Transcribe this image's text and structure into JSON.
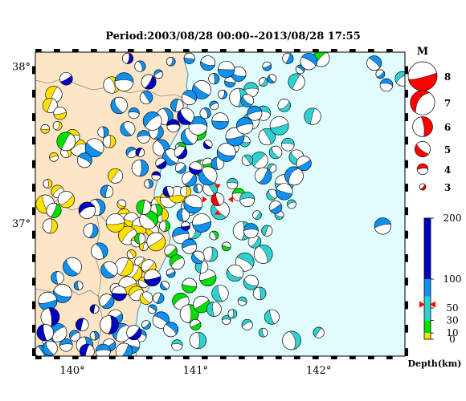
{
  "title": "Period:2003/08/28 00:00--2013/08/28 17:55",
  "map": {
    "lon_range": [
      139.7,
      142.7
    ],
    "lat_range": [
      36.15,
      38.09
    ],
    "lon_ticks": [
      {
        "value": 140,
        "label": "140°"
      },
      {
        "value": 141,
        "label": "141°"
      },
      {
        "value": 142,
        "label": "142°"
      }
    ],
    "lat_ticks": [
      {
        "value": 38,
        "label": "38°"
      },
      {
        "value": 37,
        "label": "37°"
      }
    ],
    "land_color": "#fde6c8",
    "sea_color": "#e0fcfc",
    "coast_color": "#6aa0c0",
    "prefecture_border_color": "#888888"
  },
  "mainshock": {
    "lon": 141.18,
    "lat": 37.15,
    "magnitude": 5,
    "depth_km": 56,
    "color": "#ff0000"
  },
  "magnitude_legend": {
    "title": "M",
    "items": [
      {
        "m": 8,
        "label": "8"
      },
      {
        "m": 7,
        "label": "7"
      },
      {
        "m": 6,
        "label": "6"
      },
      {
        "m": 5,
        "label": "5"
      },
      {
        "m": 4,
        "label": "4"
      },
      {
        "m": 3,
        "label": "3"
      }
    ],
    "color": "#ff0000"
  },
  "depth_scale": {
    "label": "Depth(km)",
    "ticks": [
      {
        "value": 200,
        "label": "200"
      },
      {
        "value": 100,
        "label": "100"
      },
      {
        "value": 50,
        "label": "50"
      },
      {
        "value": 30,
        "label": "30"
      },
      {
        "value": 10,
        "label": "10"
      },
      {
        "value": 0,
        "label": "0"
      }
    ],
    "bands": [
      {
        "from": 0,
        "to": 10,
        "color": "#ffe000"
      },
      {
        "from": 10,
        "to": 30,
        "color": "#00e000"
      },
      {
        "from": 30,
        "to": 70,
        "color": "#30d0d0"
      },
      {
        "from": 70,
        "to": 100,
        "color": "#1090f0"
      },
      {
        "from": 100,
        "to": 200,
        "color": "#0000c0"
      }
    ],
    "marker_depth": 56,
    "marker_color": "#ff0000"
  },
  "chart_data": {
    "type": "scatter",
    "title": "Period:2003/08/28 00:00--2013/08/28 17:55",
    "xlabel": "",
    "ylabel": "",
    "x_ticks": [
      "140°",
      "141°",
      "142°"
    ],
    "y_ticks": [
      "38°",
      "37°"
    ],
    "series": [
      {
        "name": "0",
        "color": "#ffe000",
        "points": [
          [
            140.42,
            37.05
          ],
          [
            140.48,
            37.02
          ],
          [
            140.55,
            36.98
          ],
          [
            140.45,
            36.92
          ],
          [
            140.52,
            36.88
          ],
          [
            140.58,
            36.85
          ],
          [
            140.48,
            36.8
          ],
          [
            140.55,
            36.75
          ],
          [
            140.62,
            36.72
          ],
          [
            140.5,
            36.68
          ],
          [
            140.58,
            36.62
          ],
          [
            140.45,
            36.6
          ],
          [
            140.52,
            36.55
          ],
          [
            140.6,
            36.52
          ],
          [
            140.62,
            37.08
          ],
          [
            140.7,
            37.12
          ],
          [
            140.78,
            37.15
          ],
          [
            140.85,
            37.18
          ],
          [
            140.92,
            37.2
          ],
          [
            140.72,
            37.05
          ],
          [
            140.4,
            37.12
          ],
          [
            140.35,
            37.0
          ],
          [
            140.65,
            36.95
          ],
          [
            140.68,
            36.88
          ],
          [
            140.42,
            36.72
          ],
          [
            139.85,
            37.82
          ],
          [
            139.82,
            37.75
          ],
          [
            139.9,
            37.7
          ],
          [
            139.88,
            37.62
          ],
          [
            139.78,
            37.6
          ],
          [
            139.95,
            37.45
          ],
          [
            139.85,
            37.42
          ],
          [
            140.05,
            37.48
          ],
          [
            140.0,
            37.55
          ],
          [
            139.8,
            37.25
          ],
          [
            139.88,
            37.2
          ],
          [
            139.95,
            37.15
          ],
          [
            139.78,
            37.12
          ],
          [
            139.82,
            36.98
          ],
          [
            140.32,
            37.88
          ],
          [
            140.3,
            37.52
          ],
          [
            140.35,
            37.3
          ]
        ]
      },
      {
        "name": "10",
        "color": "#00e000",
        "points": [
          [
            140.95,
            37.55
          ],
          [
            141.02,
            37.58
          ],
          [
            140.88,
            37.48
          ],
          [
            140.68,
            37.08
          ],
          [
            140.62,
            37.02
          ],
          [
            140.75,
            36.98
          ],
          [
            140.8,
            36.82
          ],
          [
            140.85,
            36.75
          ],
          [
            140.88,
            36.5
          ],
          [
            140.95,
            36.42
          ],
          [
            141.0,
            36.35
          ],
          [
            141.15,
            36.92
          ],
          [
            141.25,
            36.85
          ],
          [
            140.55,
            36.9
          ],
          [
            140.58,
            37.1
          ],
          [
            141.05,
            37.35
          ],
          [
            141.1,
            37.38
          ],
          [
            139.95,
            37.52
          ],
          [
            139.85,
            37.08
          ],
          [
            141.35,
            37.18
          ],
          [
            141.1,
            36.65
          ],
          [
            140.95,
            36.6
          ],
          [
            141.05,
            36.48
          ],
          [
            142.02,
            38.05
          ]
        ]
      },
      {
        "name": "30",
        "color": "#30d0d0",
        "points": [
          [
            141.3,
            37.25
          ],
          [
            141.42,
            37.15
          ],
          [
            141.5,
            37.05
          ],
          [
            141.38,
            36.95
          ],
          [
            141.48,
            36.88
          ],
          [
            141.55,
            36.8
          ],
          [
            141.4,
            36.75
          ],
          [
            141.32,
            36.68
          ],
          [
            141.45,
            36.62
          ],
          [
            141.52,
            36.55
          ],
          [
            141.38,
            36.5
          ],
          [
            141.3,
            36.42
          ],
          [
            141.42,
            36.35
          ],
          [
            141.55,
            36.3
          ],
          [
            141.2,
            36.55
          ],
          [
            141.15,
            36.45
          ],
          [
            141.25,
            36.38
          ],
          [
            141.65,
            37.45
          ],
          [
            141.58,
            37.55
          ],
          [
            141.68,
            37.62
          ],
          [
            141.55,
            37.7
          ],
          [
            141.45,
            37.65
          ],
          [
            141.75,
            37.5
          ],
          [
            141.82,
            37.42
          ],
          [
            141.62,
            37.35
          ],
          [
            141.52,
            37.4
          ],
          [
            141.4,
            37.52
          ],
          [
            141.3,
            37.48
          ],
          [
            141.72,
            37.25
          ],
          [
            141.62,
            37.18
          ],
          [
            141.05,
            36.72
          ],
          [
            141.12,
            36.8
          ],
          [
            140.98,
            36.95
          ],
          [
            141.2,
            37.08
          ],
          [
            141.58,
            36.95
          ],
          [
            141.68,
            37.05
          ],
          [
            141.78,
            37.12
          ],
          [
            141.42,
            37.4
          ],
          [
            141.12,
            37.22
          ],
          [
            140.95,
            37.1
          ],
          [
            142.0,
            36.3
          ],
          [
            141.78,
            36.25
          ],
          [
            141.62,
            36.4
          ],
          [
            141.72,
            37.75
          ],
          [
            141.82,
            37.9
          ],
          [
            142.68,
            37.92
          ],
          [
            141.95,
            37.68
          ],
          [
            141.02,
            36.25
          ],
          [
            140.85,
            36.22
          ],
          [
            141.45,
            37.85
          ],
          [
            141.55,
            37.9
          ],
          [
            141.35,
            37.8
          ]
        ]
      },
      {
        "name": "70",
        "color": "#1090f0",
        "points": [
          [
            140.9,
            37.05
          ],
          [
            140.98,
            37.12
          ],
          [
            141.05,
            37.0
          ],
          [
            140.88,
            36.92
          ],
          [
            140.95,
            36.85
          ],
          [
            141.02,
            36.78
          ],
          [
            140.8,
            36.68
          ],
          [
            140.75,
            36.6
          ],
          [
            140.7,
            36.52
          ],
          [
            140.65,
            36.45
          ],
          [
            140.72,
            36.38
          ],
          [
            140.8,
            36.32
          ],
          [
            140.6,
            36.35
          ],
          [
            140.55,
            36.28
          ],
          [
            140.48,
            36.22
          ],
          [
            140.4,
            36.3
          ],
          [
            140.35,
            36.4
          ],
          [
            140.42,
            36.18
          ],
          [
            140.3,
            36.22
          ],
          [
            140.25,
            36.18
          ],
          [
            140.18,
            36.28
          ],
          [
            140.1,
            36.22
          ],
          [
            140.02,
            36.28
          ],
          [
            139.95,
            36.22
          ],
          [
            139.88,
            36.3
          ],
          [
            139.8,
            36.25
          ],
          [
            139.75,
            36.18
          ],
          [
            139.82,
            36.2
          ],
          [
            140.95,
            37.55
          ],
          [
            141.02,
            37.62
          ],
          [
            141.08,
            37.7
          ],
          [
            141.15,
            37.75
          ],
          [
            141.22,
            37.82
          ],
          [
            141.28,
            37.9
          ],
          [
            141.35,
            37.95
          ],
          [
            141.25,
            37.98
          ],
          [
            141.15,
            37.92
          ],
          [
            141.05,
            37.85
          ],
          [
            140.95,
            37.8
          ],
          [
            140.85,
            37.75
          ],
          [
            140.75,
            37.68
          ],
          [
            140.68,
            37.58
          ],
          [
            140.72,
            37.48
          ],
          [
            140.8,
            37.42
          ],
          [
            140.88,
            37.35
          ],
          [
            140.95,
            37.28
          ],
          [
            141.02,
            37.22
          ],
          [
            141.1,
            37.3
          ],
          [
            141.18,
            37.38
          ],
          [
            141.25,
            37.45
          ],
          [
            141.32,
            37.55
          ],
          [
            141.4,
            37.62
          ],
          [
            141.48,
            37.7
          ],
          [
            141.42,
            37.78
          ],
          [
            141.58,
            38.0
          ],
          [
            141.62,
            37.92
          ],
          [
            141.75,
            38.05
          ],
          [
            141.85,
            37.98
          ],
          [
            141.92,
            38.03
          ],
          [
            142.45,
            38.02
          ],
          [
            142.5,
            37.95
          ],
          [
            142.55,
            37.88
          ],
          [
            141.72,
            37.2
          ],
          [
            141.8,
            37.3
          ],
          [
            141.88,
            37.38
          ],
          [
            141.55,
            37.3
          ],
          [
            141.65,
            37.1
          ],
          [
            141.45,
            36.95
          ],
          [
            140.62,
            37.25
          ],
          [
            140.55,
            37.35
          ],
          [
            140.48,
            37.45
          ],
          [
            140.58,
            37.55
          ],
          [
            140.65,
            37.65
          ],
          [
            140.5,
            37.7
          ],
          [
            140.6,
            37.8
          ],
          [
            140.45,
            37.6
          ],
          [
            140.38,
            37.75
          ],
          [
            140.42,
            37.9
          ],
          [
            140.55,
            38.0
          ],
          [
            140.7,
            37.95
          ],
          [
            140.8,
            38.03
          ],
          [
            140.95,
            38.05
          ],
          [
            141.1,
            38.02
          ],
          [
            141.2,
            37.65
          ],
          [
            140.25,
            37.58
          ],
          [
            140.18,
            37.48
          ],
          [
            140.1,
            37.4
          ],
          [
            140.28,
            37.2
          ],
          [
            140.2,
            37.1
          ],
          [
            140.15,
            36.95
          ],
          [
            140.22,
            36.82
          ],
          [
            140.3,
            36.7
          ],
          [
            140.35,
            36.58
          ],
          [
            140.28,
            36.5
          ],
          [
            140.05,
            36.6
          ],
          [
            140.0,
            36.72
          ],
          [
            139.88,
            36.65
          ],
          [
            139.92,
            36.55
          ],
          [
            139.8,
            36.5
          ],
          [
            142.52,
            36.98
          ]
        ]
      },
      {
        "name": "100",
        "color": "#0000c0",
        "points": [
          [
            140.62,
            37.9
          ],
          [
            140.82,
            37.62
          ],
          [
            140.55,
            37.45
          ],
          [
            140.68,
            37.3
          ],
          [
            140.78,
            37.2
          ],
          [
            140.92,
            36.98
          ],
          [
            140.65,
            36.65
          ],
          [
            140.38,
            36.55
          ],
          [
            140.18,
            36.45
          ],
          [
            139.95,
            37.92
          ],
          [
            140.12,
            37.08
          ],
          [
            139.82,
            36.4
          ],
          [
            140.12,
            36.18
          ],
          [
            139.78,
            36.3
          ],
          [
            140.08,
            36.35
          ],
          [
            140.5,
            36.3
          ],
          [
            141.1,
            37.5
          ],
          [
            140.92,
            37.68
          ],
          [
            140.45,
            38.05
          ],
          [
            140.88,
            37.45
          ],
          [
            140.3,
            36.35
          ],
          [
            140.72,
            37.38
          ],
          [
            141.0,
            37.35
          ]
        ]
      }
    ]
  }
}
